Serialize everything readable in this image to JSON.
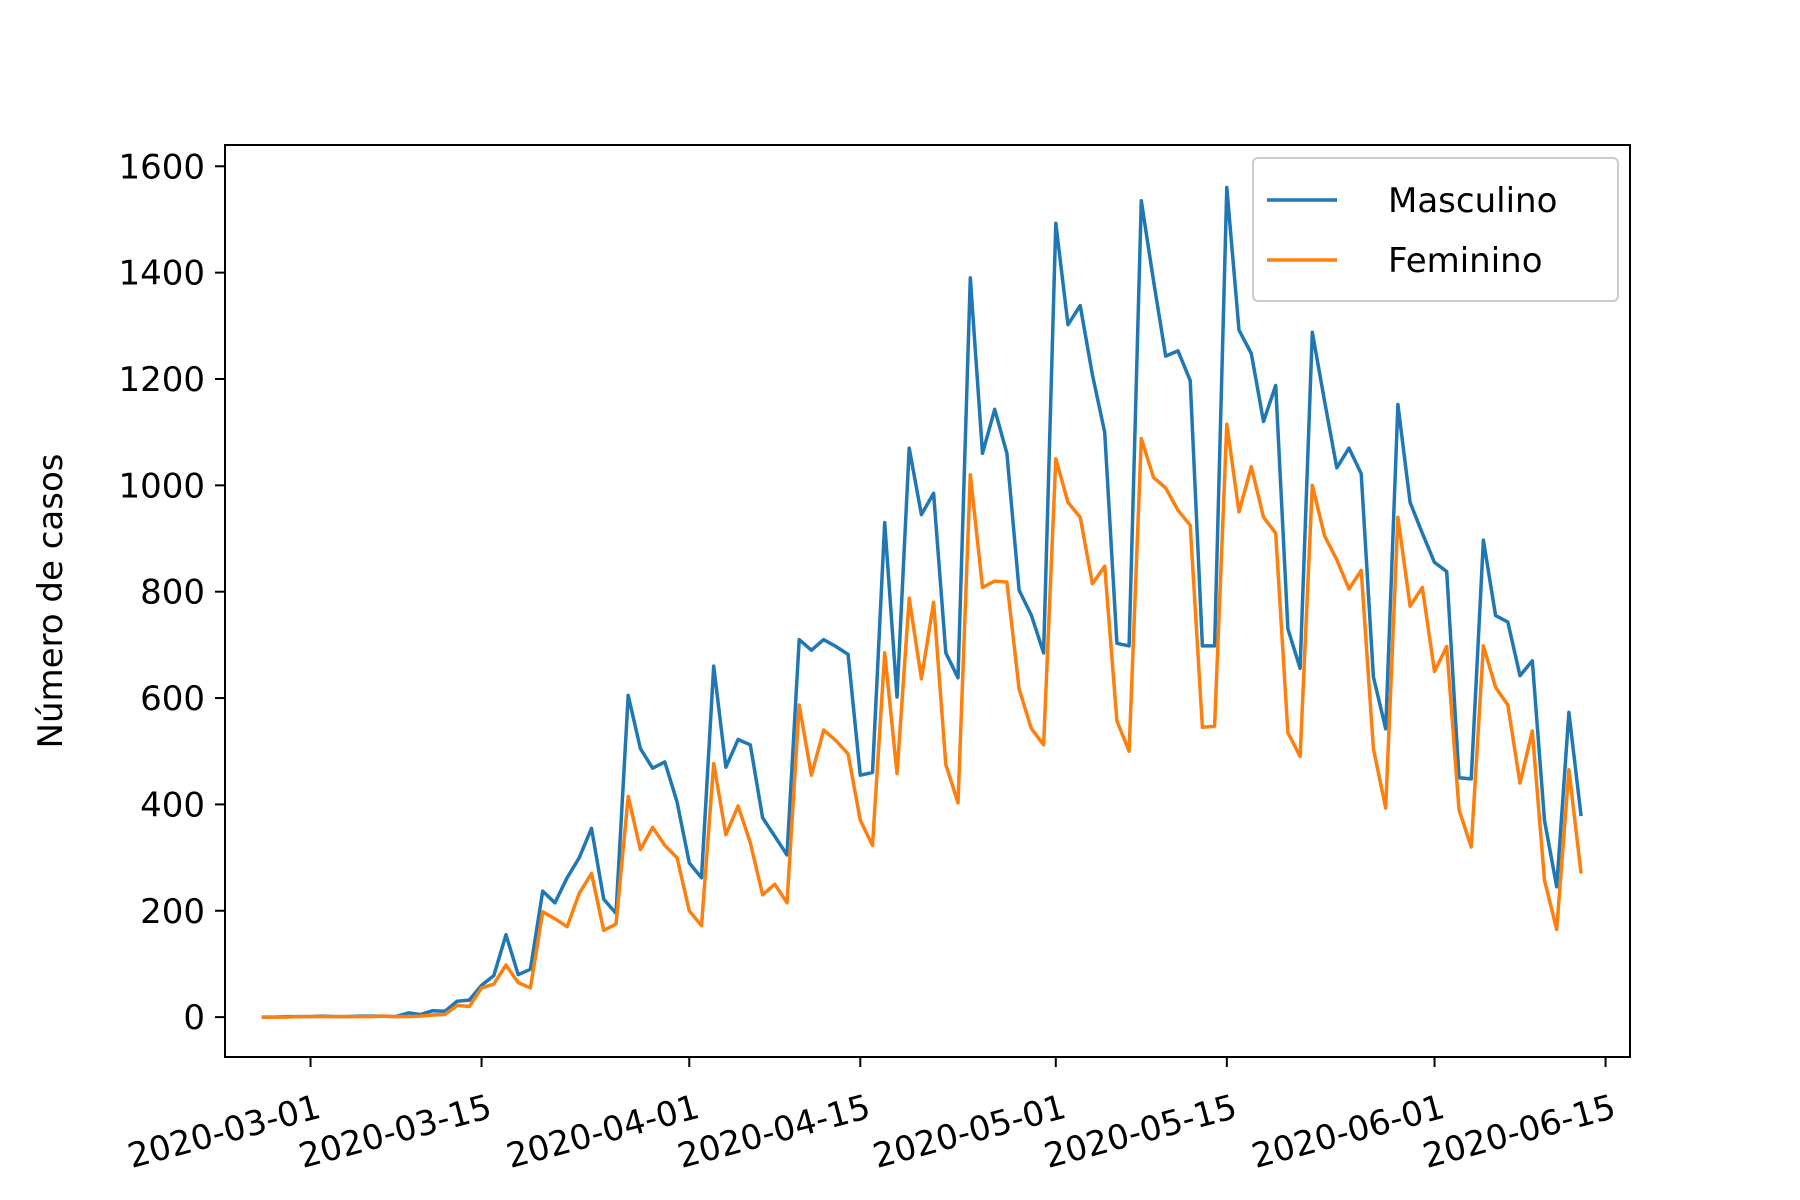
{
  "chart_data": {
    "type": "line",
    "title": "",
    "xlabel": "",
    "ylabel": "Número de casos",
    "xlim": [
      "2020-02-23",
      "2020-06-17"
    ],
    "ylim": [
      -75,
      1640
    ],
    "x_ticks": [
      "2020-03-01",
      "2020-03-15",
      "2020-04-01",
      "2020-04-15",
      "2020-05-01",
      "2020-05-15",
      "2020-06-01",
      "2020-06-15"
    ],
    "y_ticks": [
      0,
      200,
      400,
      600,
      800,
      1000,
      1200,
      1400,
      1600
    ],
    "legend_position": "upper right",
    "grid": false,
    "x_start": "2020-02-26",
    "series": [
      {
        "name": "Masculino",
        "color": "#1f77b4",
        "values": [
          0,
          0,
          1,
          1,
          1,
          2,
          1,
          1,
          2,
          2,
          2,
          1,
          8,
          5,
          12,
          11,
          30,
          32,
          60,
          78,
          155,
          80,
          90,
          237,
          215,
          262,
          300,
          355,
          222,
          195,
          605,
          505,
          468,
          480,
          405,
          290,
          262,
          660,
          470,
          522,
          512,
          375,
          340,
          305,
          710,
          690,
          710,
          697,
          682,
          455,
          460,
          930,
          602,
          1070,
          945,
          985,
          685,
          638,
          1390,
          1060,
          1143,
          1060,
          803,
          756,
          685,
          1493,
          1302,
          1338,
          1208,
          1100,
          703,
          698,
          1535,
          1385,
          1243,
          1253,
          1197,
          698,
          698,
          1560,
          1292,
          1248,
          1120,
          1188,
          730,
          656,
          1288,
          1158,
          1033,
          1070,
          1022,
          640,
          542,
          1152,
          968,
          910,
          855,
          838,
          450,
          448,
          897,
          755,
          743,
          642,
          670,
          370,
          245,
          573,
          378
        ]
      },
      {
        "name": "Feminino",
        "color": "#ff7f0e",
        "values": [
          0,
          0,
          0,
          1,
          1,
          1,
          1,
          1,
          1,
          1,
          2,
          1,
          1,
          2,
          4,
          5,
          22,
          20,
          55,
          62,
          98,
          65,
          55,
          198,
          185,
          170,
          233,
          270,
          163,
          175,
          415,
          315,
          357,
          323,
          300,
          200,
          172,
          477,
          343,
          397,
          328,
          230,
          250,
          215,
          587,
          455,
          540,
          520,
          495,
          370,
          323,
          685,
          458,
          788,
          636,
          780,
          475,
          403,
          1020,
          808,
          820,
          818,
          617,
          543,
          512,
          1050,
          968,
          940,
          815,
          848,
          557,
          500,
          1088,
          1015,
          995,
          953,
          925,
          545,
          547,
          1115,
          950,
          1035,
          940,
          910,
          535,
          490,
          1000,
          905,
          860,
          805,
          840,
          505,
          393,
          940,
          773,
          808,
          650,
          697,
          390,
          320,
          698,
          620,
          587,
          440,
          538,
          257,
          165,
          465,
          270
        ]
      }
    ]
  }
}
